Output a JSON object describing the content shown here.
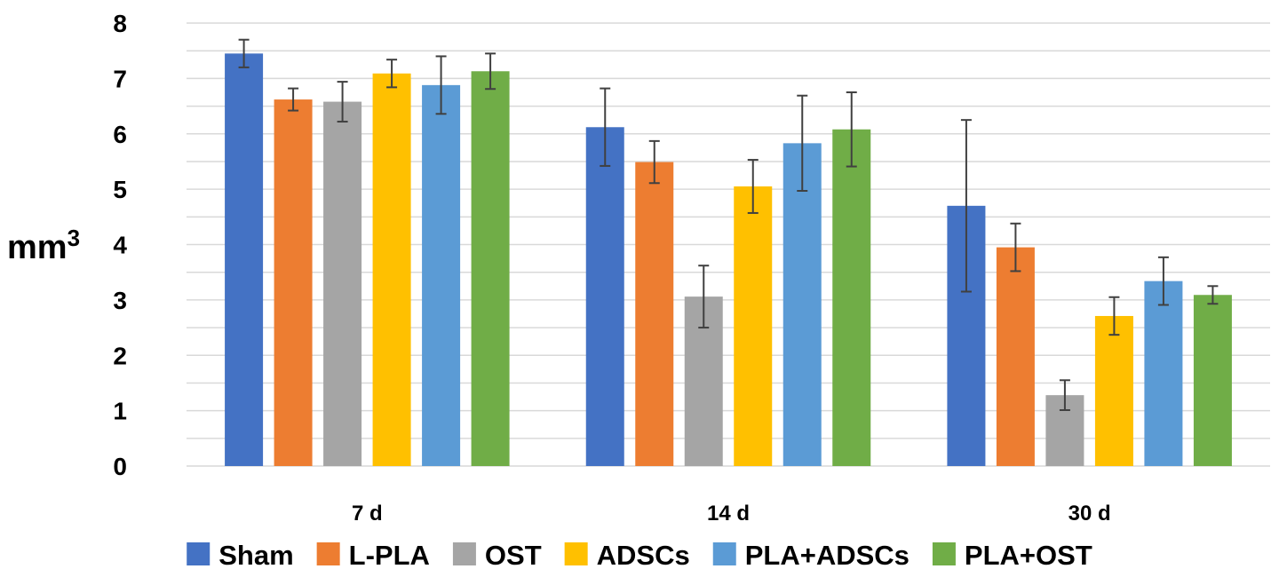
{
  "chart_data": {
    "type": "bar",
    "title": "",
    "xlabel": "",
    "ylabel": "mm",
    "ylabel_superscript": "3",
    "ylim": [
      0,
      8
    ],
    "yticks": [
      "0",
      "1",
      "2",
      "3",
      "4",
      "5",
      "6",
      "7",
      "8"
    ],
    "grid": true,
    "legend_position": "bottom",
    "error_bars": true,
    "categories": [
      "7 d",
      "14 d",
      "30 d"
    ],
    "series": [
      {
        "name": "Sham",
        "color": "#4472C4",
        "values": [
          7.45,
          6.12,
          4.7
        ],
        "errors": [
          0.25,
          0.7,
          1.55
        ]
      },
      {
        "name": "L-PLA",
        "color": "#ED7D31",
        "values": [
          6.62,
          5.49,
          3.95
        ],
        "errors": [
          0.2,
          0.38,
          0.43
        ]
      },
      {
        "name": "OST",
        "color": "#A5A5A5",
        "values": [
          6.58,
          3.06,
          1.28
        ],
        "errors": [
          0.36,
          0.56,
          0.27
        ]
      },
      {
        "name": "ADSCs",
        "color": "#FFC000",
        "values": [
          7.09,
          5.05,
          2.71
        ],
        "errors": [
          0.25,
          0.48,
          0.34
        ]
      },
      {
        "name": "PLA+ADSCs",
        "color": "#5B9BD5",
        "values": [
          6.88,
          5.83,
          3.34
        ],
        "errors": [
          0.52,
          0.86,
          0.43
        ]
      },
      {
        "name": "PLA+OST",
        "color": "#70AD47",
        "values": [
          7.13,
          6.08,
          3.09
        ],
        "errors": [
          0.32,
          0.67,
          0.16
        ]
      }
    ]
  }
}
